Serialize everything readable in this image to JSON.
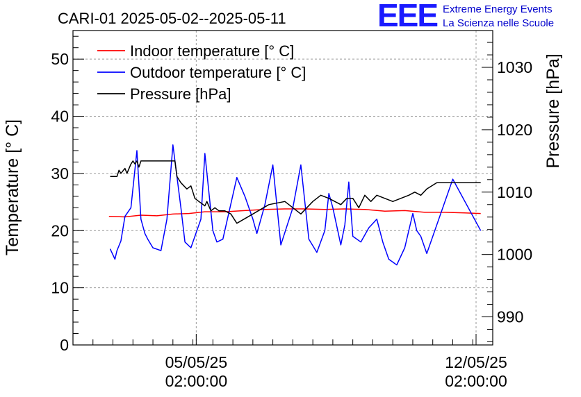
{
  "title": "CARI-01 2025-05-02--2025-05-11",
  "logo": {
    "mark": "EEE",
    "line1": "Extreme Energy Events",
    "line2": "La Scienza nelle Scuole"
  },
  "chart_data": {
    "type": "line",
    "title": "CARI-01 2025-05-02--2025-05-11",
    "xlabel": "",
    "ylabel": "Temperature [° C]",
    "y2label": "Pressure [hPa]",
    "grid": true,
    "legend": "top-left",
    "x_unit": "days since 2025-05-02 00:00",
    "xlim": [
      0,
      10.5
    ],
    "ylim": [
      0,
      55
    ],
    "y2lim": [
      985.5,
      1035.9
    ],
    "x_ticks": [
      {
        "value": 3.083,
        "label1": "05/05/25",
        "label2": "02:00:00"
      },
      {
        "value": 10.083,
        "label1": "12/05/25",
        "label2": "02:00:00"
      }
    ],
    "y_ticks": [
      0,
      10,
      20,
      30,
      40,
      50
    ],
    "y2_ticks": [
      990,
      1000,
      1010,
      1020,
      1030
    ],
    "colors": {
      "indoor": "#ff0000",
      "outdoor": "#0000ff",
      "pressure": "#000000"
    },
    "series": [
      {
        "name": "Indoor temperature [° C]",
        "axis": "left",
        "color": "#ff0000",
        "x": [
          0.9,
          1.3,
          1.7,
          2.1,
          2.5,
          2.9,
          3.3,
          3.8,
          4.3,
          4.8,
          5.3,
          5.8,
          6.3,
          6.8,
          7.3,
          7.8,
          8.3,
          8.8,
          9.3,
          9.8,
          10.2
        ],
        "y": [
          22.5,
          22.4,
          22.7,
          22.6,
          22.9,
          23.0,
          23.3,
          23.3,
          23.5,
          23.7,
          23.8,
          23.8,
          23.7,
          23.8,
          23.7,
          23.4,
          23.5,
          23.2,
          23.2,
          23.1,
          23.0
        ]
      },
      {
        "name": "Outdoor temperature [° C]",
        "axis": "left",
        "color": "#0000ff",
        "x": [
          0.93,
          1.05,
          1.1,
          1.2,
          1.3,
          1.45,
          1.6,
          1.7,
          1.8,
          1.87,
          2.0,
          2.2,
          2.35,
          2.5,
          2.7,
          2.8,
          2.95,
          3.1,
          3.2,
          3.3,
          3.5,
          3.6,
          3.75,
          4.1,
          4.3,
          4.5,
          4.6,
          4.8,
          5.0,
          5.2,
          5.5,
          5.7,
          5.9,
          6.1,
          6.3,
          6.4,
          6.5,
          6.7,
          6.8,
          6.9,
          7.0,
          7.2,
          7.4,
          7.6,
          7.75,
          7.9,
          8.1,
          8.3,
          8.5,
          8.6,
          8.7,
          8.85,
          9.5,
          10.2
        ],
        "y": [
          16.8,
          15.0,
          16.5,
          18.2,
          22.5,
          24.0,
          34.0,
          22.0,
          19.5,
          18.5,
          17.0,
          16.5,
          22.0,
          35.0,
          24.0,
          18.0,
          17.0,
          20.0,
          22.0,
          33.5,
          20.0,
          18.0,
          18.5,
          29.3,
          26.0,
          22.0,
          19.5,
          24.5,
          31.5,
          17.5,
          24.0,
          31.5,
          18.5,
          16.2,
          20.0,
          26.5,
          24.0,
          17.5,
          21.0,
          28.5,
          19.0,
          18.0,
          20.5,
          22.0,
          18.0,
          15.0,
          14.0,
          17.0,
          23.0,
          20.0,
          19.0,
          16.0,
          29.0,
          20.0
        ]
      },
      {
        "name": "Pressure [hPa]",
        "axis": "right",
        "color": "#000000",
        "x": [
          0.93,
          1.1,
          1.15,
          1.2,
          1.3,
          1.35,
          1.45,
          1.5,
          1.55,
          1.6,
          1.65,
          1.7,
          1.95,
          2.55,
          2.6,
          2.7,
          2.85,
          2.95,
          3.0,
          3.05,
          3.15,
          3.3,
          3.35,
          3.45,
          3.55,
          3.65,
          3.8,
          3.95,
          4.1,
          4.5,
          4.9,
          5.3,
          5.7,
          6.0,
          6.2,
          6.4,
          6.55,
          6.7,
          6.85,
          7.0,
          7.15,
          7.3,
          7.45,
          7.6,
          7.8,
          8.0,
          8.2,
          8.4,
          8.55,
          8.7,
          8.85,
          9.1,
          9.4,
          9.8,
          10.2
        ],
        "y": [
          1012.5,
          1012.5,
          1013.5,
          1013.0,
          1013.8,
          1013.0,
          1014.5,
          1015.0,
          1014.5,
          1015.0,
          1014.0,
          1015.0,
          1015.0,
          1015.0,
          1012.5,
          1011.5,
          1010.5,
          1011.0,
          1010.0,
          1009.0,
          1008.5,
          1007.8,
          1008.5,
          1007.0,
          1007.5,
          1007.0,
          1007.0,
          1006.5,
          1005.0,
          1006.5,
          1008.0,
          1008.5,
          1006.5,
          1008.5,
          1009.5,
          1009.0,
          1008.5,
          1008.0,
          1009.0,
          1009.0,
          1007.5,
          1009.5,
          1008.5,
          1009.5,
          1009.0,
          1008.5,
          1009.0,
          1009.5,
          1010.0,
          1009.5,
          1010.5,
          1011.5,
          1011.5,
          1011.5,
          1011.5
        ]
      }
    ]
  }
}
